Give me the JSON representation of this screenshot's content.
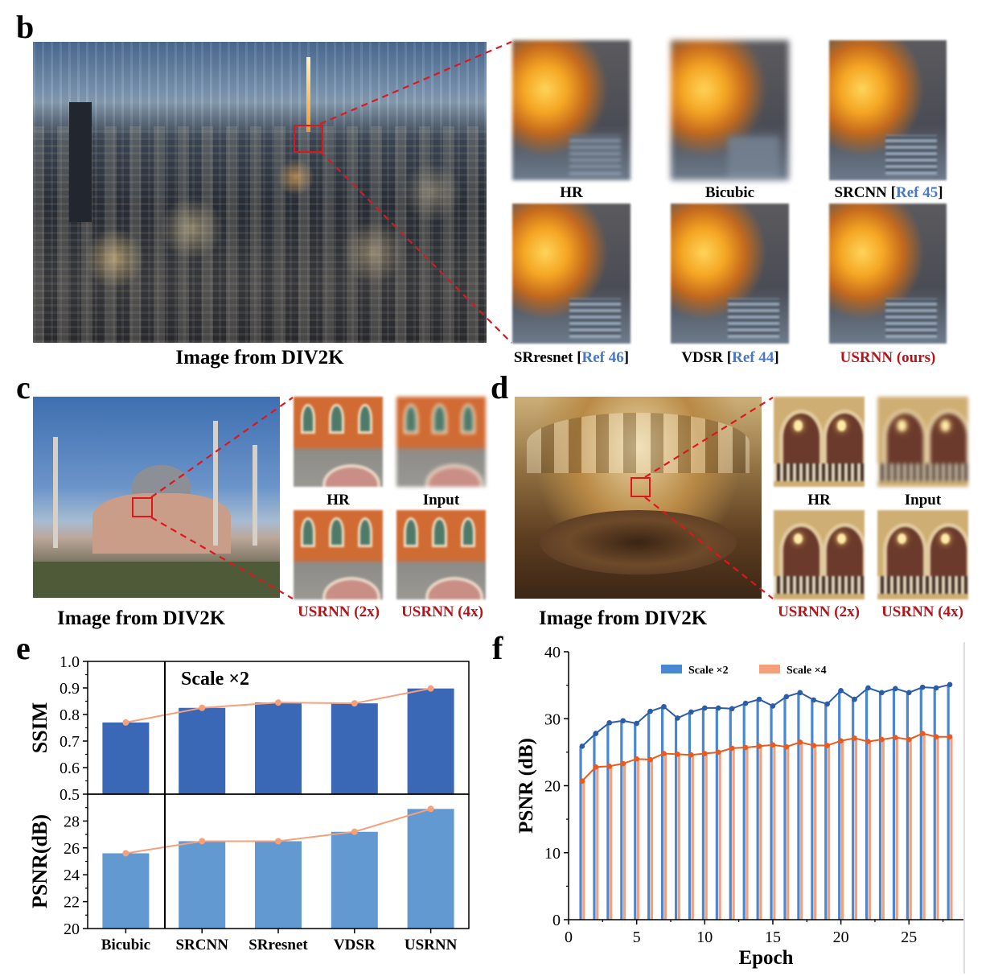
{
  "panels": {
    "b": {
      "letter": "b",
      "caption": "Image from DIV2K",
      "tiles": [
        {
          "label": "HR"
        },
        {
          "label": "Bicubic"
        },
        {
          "label": "SRCNN",
          "ref": "Ref 45"
        },
        {
          "label": "SRresnet",
          "ref": "Ref 46"
        },
        {
          "label": "VDSR",
          "ref": "Ref 44"
        },
        {
          "label": "USRNN (ours)"
        }
      ]
    },
    "c": {
      "letter": "c",
      "caption": "Image from DIV2K",
      "tiles": [
        "HR",
        "Input",
        "USRNN (2x)",
        "USRNN (4x)"
      ]
    },
    "d": {
      "letter": "d",
      "caption": "Image from DIV2K",
      "tiles": [
        "HR",
        "Input",
        "USRNN (2x)",
        "USRNN (4x)"
      ]
    },
    "e": {
      "letter": "e"
    },
    "f": {
      "letter": "f"
    }
  },
  "colors": {
    "ssim_bar": "#3a68b6",
    "psnr_bar": "#6399d1",
    "trend_line": "#f4a07a",
    "scale2": "#4a87d1",
    "scale4": "#f4a07a",
    "scale2_line": "#2a5ca8",
    "scale4_line": "#e95a1f",
    "highlight_red": "#b3151b",
    "ref_blue": "#4a78c2"
  },
  "chart_data": [
    {
      "type": "bar",
      "panel": "e-top",
      "categories": [
        "Bicubic",
        "SRCNN",
        "SRresnet",
        "VDSR",
        "USRNN"
      ],
      "values": [
        0.77,
        0.825,
        0.845,
        0.842,
        0.898
      ],
      "annotation": "Scale ×2",
      "ylabel": "SSIM",
      "ylim": [
        0.5,
        1.0
      ],
      "yticks": [
        "0.5",
        "0.6",
        "0.7",
        "0.8",
        "0.9",
        "1.0"
      ],
      "line_overlay": true
    },
    {
      "type": "bar",
      "panel": "e-bottom",
      "categories": [
        "Bicubic",
        "SRCNN",
        "SRresnet",
        "VDSR",
        "USRNN"
      ],
      "values": [
        25.6,
        26.5,
        26.5,
        27.2,
        28.9
      ],
      "ylabel": "PSNR(dB)",
      "ylim": [
        20,
        30
      ],
      "yticks": [
        "20",
        "22",
        "24",
        "26",
        "28"
      ],
      "line_overlay": true
    },
    {
      "type": "bar",
      "panel": "f",
      "xlabel": "Epoch",
      "ylabel": "PSNR (dB)",
      "xlim": [
        0,
        29
      ],
      "ylim": [
        0,
        40
      ],
      "xticks": [
        "0",
        "5",
        "10",
        "15",
        "20",
        "25"
      ],
      "yticks": [
        "0",
        "10",
        "20",
        "30",
        "40"
      ],
      "x": [
        1,
        2,
        3,
        4,
        5,
        6,
        7,
        8,
        9,
        10,
        11,
        12,
        13,
        14,
        15,
        16,
        17,
        18,
        19,
        20,
        21,
        22,
        23,
        24,
        25,
        26,
        27,
        28
      ],
      "series": [
        {
          "name": "Scale ×2",
          "values": [
            25.9,
            27.8,
            29.4,
            29.7,
            29.3,
            31.1,
            31.8,
            30.1,
            31.0,
            31.6,
            31.6,
            31.5,
            32.3,
            32.9,
            31.9,
            33.3,
            33.9,
            32.8,
            32.2,
            34.2,
            32.9,
            34.6,
            33.9,
            34.5,
            33.9,
            34.7,
            34.6,
            35.1
          ]
        },
        {
          "name": "Scale ×4",
          "values": [
            20.7,
            22.8,
            22.9,
            23.3,
            24.0,
            23.9,
            24.8,
            24.7,
            24.6,
            24.8,
            25.0,
            25.6,
            25.7,
            25.9,
            26.1,
            25.8,
            26.5,
            26.0,
            26.0,
            26.7,
            27.1,
            26.6,
            26.9,
            27.2,
            26.9,
            27.8,
            27.3,
            27.3
          ]
        }
      ],
      "legend_position": "top-center",
      "line_overlay": true
    }
  ]
}
